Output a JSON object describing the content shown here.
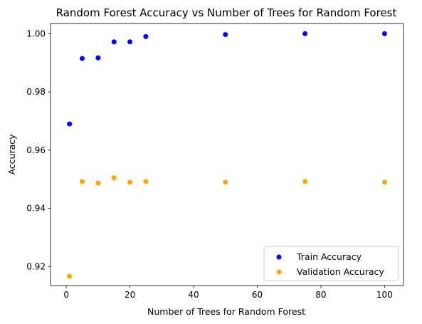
{
  "chart_data": {
    "type": "scatter",
    "title": "Random Forest Accuracy vs Number of Trees for Random Forest",
    "xlabel": "Number of Trees for Random Forest",
    "ylabel": "Accuracy",
    "xlim": [
      -4.95,
      105.95
    ],
    "ylim": [
      0.9135,
      1.0035
    ],
    "xticks": [
      0,
      20,
      40,
      60,
      80,
      100
    ],
    "yticks": [
      0.92,
      0.94,
      0.96,
      0.98,
      1.0
    ],
    "ytick_labels": [
      "0.92",
      "0.94",
      "0.96",
      "0.98",
      "1.00"
    ],
    "grid": false,
    "legend_position": "lower-right",
    "series": [
      {
        "name": "Train Accuracy",
        "color": "#0000ff",
        "x": [
          1,
          5,
          10,
          15,
          20,
          25,
          50,
          75,
          100
        ],
        "y": [
          0.969,
          0.9915,
          0.9917,
          0.9972,
          0.9972,
          0.999,
          0.9997,
          1.0,
          1.0
        ]
      },
      {
        "name": "Validation Accuracy",
        "color": "#ffa500",
        "x": [
          1,
          5,
          10,
          15,
          20,
          25,
          50,
          75,
          100
        ],
        "y": [
          0.9167,
          0.9492,
          0.9487,
          0.9505,
          0.949,
          0.9492,
          0.949,
          0.9492,
          0.949
        ]
      }
    ]
  }
}
